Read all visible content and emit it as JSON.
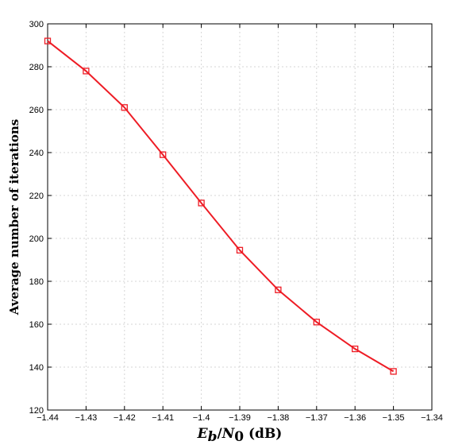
{
  "chart_data": {
    "type": "line",
    "x": [
      -1.44,
      -1.43,
      -1.42,
      -1.41,
      -1.4,
      -1.39,
      -1.38,
      -1.37,
      -1.36,
      -1.35
    ],
    "series": [
      {
        "values": [
          292,
          278,
          261,
          239,
          216.5,
          194.5,
          176,
          161,
          148.5,
          138
        ]
      }
    ],
    "title": "",
    "ylabel": "Average number of iterations",
    "xlabel": {
      "E": "E",
      "b": "b",
      "slash": "/",
      "N": "N",
      "zero": "0",
      "unit": " (dB)"
    },
    "xlim": [
      -1.44,
      -1.34
    ],
    "ylim": [
      120,
      300
    ],
    "xticks": [
      -1.44,
      -1.43,
      -1.42,
      -1.41,
      -1.4,
      -1.39,
      -1.38,
      -1.37,
      -1.36,
      -1.35,
      -1.34
    ],
    "xtick_labels": [
      "−1.44",
      "−1.43",
      "−1.42",
      "−1.41",
      "−1.4",
      "−1.39",
      "−1.38",
      "−1.37",
      "−1.36",
      "−1.35",
      "−1.34"
    ],
    "yticks": [
      120,
      140,
      160,
      180,
      200,
      220,
      240,
      260,
      280,
      300
    ],
    "ytick_labels": [
      "120",
      "140",
      "160",
      "180",
      "200",
      "220",
      "240",
      "260",
      "280",
      "300"
    ],
    "grid": true,
    "marker": "square",
    "line_color": "#ee1c25",
    "grid_color": "#d6d6d6",
    "axis_color": "#000000"
  }
}
